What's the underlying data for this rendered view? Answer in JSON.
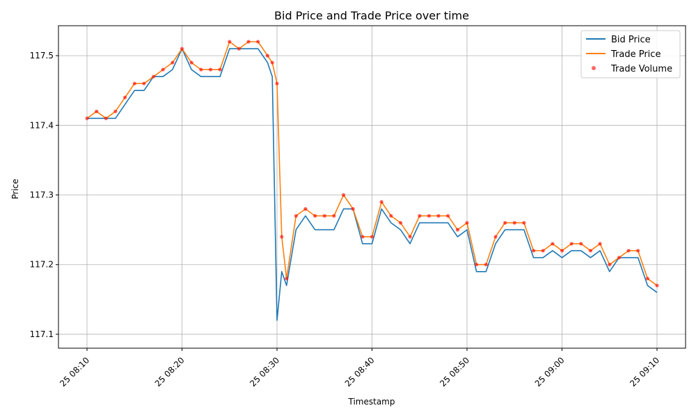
{
  "chart_data": {
    "type": "line",
    "title": "Bid Price and Trade Price over time",
    "xlabel": "Timestamp",
    "ylabel": "Price",
    "ylim": [
      117.08,
      117.543
    ],
    "y_ticks": [
      117.1,
      117.2,
      117.3,
      117.4,
      117.5
    ],
    "y_tick_labels": [
      "117.1",
      "117.2",
      "117.3",
      "117.4",
      "117.5"
    ],
    "x_ticks": [
      "08:10",
      "08:20",
      "08:30",
      "08:40",
      "08:50",
      "09:00",
      "09:10"
    ],
    "x_tick_labels": [
      "25 08:10",
      "25 08:20",
      "25 08:30",
      "25 08:40",
      "25 08:50",
      "25 09:00",
      "25 09:10"
    ],
    "grid": true,
    "legend_position": "top-right",
    "legend": [
      "Bid Price",
      "Trade Price",
      "Trade Volume"
    ],
    "colors": {
      "bid": "#1f77b4",
      "trade": "#ff7f0e",
      "volume": "#ff0000"
    },
    "series": [
      {
        "name": "Bid Price",
        "x": [
          "08:10",
          "08:11",
          "08:12",
          "08:13",
          "08:14",
          "08:15",
          "08:16",
          "08:17",
          "08:18",
          "08:19",
          "08:20",
          "08:21",
          "08:22",
          "08:23",
          "08:24",
          "08:25",
          "08:26",
          "08:27",
          "08:28",
          "08:29",
          "08:29:30",
          "08:30",
          "08:30:30",
          "08:31",
          "08:32",
          "08:33",
          "08:34",
          "08:35",
          "08:36",
          "08:37",
          "08:38",
          "08:39",
          "08:40",
          "08:41",
          "08:42",
          "08:43",
          "08:44",
          "08:45",
          "08:46",
          "08:47",
          "08:48",
          "08:49",
          "08:50",
          "08:51",
          "08:52",
          "08:53",
          "08:54",
          "08:55",
          "08:56",
          "08:57",
          "08:58",
          "08:59",
          "09:00",
          "09:01",
          "09:02",
          "09:03",
          "09:04",
          "09:05",
          "09:06",
          "09:07",
          "09:08",
          "09:09",
          "09:10"
        ],
        "values": [
          117.41,
          117.41,
          117.41,
          117.41,
          117.43,
          117.45,
          117.45,
          117.47,
          117.47,
          117.48,
          117.51,
          117.48,
          117.47,
          117.47,
          117.47,
          117.51,
          117.51,
          117.51,
          117.51,
          117.49,
          117.47,
          117.12,
          117.19,
          117.17,
          117.25,
          117.27,
          117.25,
          117.25,
          117.25,
          117.28,
          117.28,
          117.23,
          117.23,
          117.28,
          117.26,
          117.25,
          117.23,
          117.26,
          117.26,
          117.26,
          117.26,
          117.24,
          117.25,
          117.19,
          117.19,
          117.23,
          117.25,
          117.25,
          117.25,
          117.21,
          117.21,
          117.22,
          117.21,
          117.22,
          117.22,
          117.21,
          117.22,
          117.19,
          117.21,
          117.21,
          117.21,
          117.17,
          117.16
        ]
      },
      {
        "name": "Trade Price",
        "x": [
          "08:10",
          "08:11",
          "08:12",
          "08:13",
          "08:14",
          "08:15",
          "08:16",
          "08:17",
          "08:18",
          "08:19",
          "08:20",
          "08:21",
          "08:22",
          "08:23",
          "08:24",
          "08:25",
          "08:26",
          "08:27",
          "08:28",
          "08:29",
          "08:29:30",
          "08:30",
          "08:30:30",
          "08:31",
          "08:32",
          "08:33",
          "08:34",
          "08:35",
          "08:36",
          "08:37",
          "08:38",
          "08:39",
          "08:40",
          "08:41",
          "08:42",
          "08:43",
          "08:44",
          "08:45",
          "08:46",
          "08:47",
          "08:48",
          "08:49",
          "08:50",
          "08:51",
          "08:52",
          "08:53",
          "08:54",
          "08:55",
          "08:56",
          "08:57",
          "08:58",
          "08:59",
          "09:00",
          "09:01",
          "09:02",
          "09:03",
          "09:04",
          "09:05",
          "09:06",
          "09:07",
          "09:08",
          "09:09",
          "09:10"
        ],
        "values": [
          117.41,
          117.42,
          117.41,
          117.42,
          117.44,
          117.46,
          117.46,
          117.47,
          117.48,
          117.49,
          117.51,
          117.49,
          117.48,
          117.48,
          117.48,
          117.52,
          117.51,
          117.52,
          117.52,
          117.5,
          117.49,
          117.46,
          117.24,
          117.18,
          117.27,
          117.28,
          117.27,
          117.27,
          117.27,
          117.3,
          117.28,
          117.24,
          117.24,
          117.29,
          117.27,
          117.26,
          117.24,
          117.27,
          117.27,
          117.27,
          117.27,
          117.25,
          117.26,
          117.2,
          117.2,
          117.24,
          117.26,
          117.26,
          117.26,
          117.22,
          117.22,
          117.23,
          117.22,
          117.23,
          117.23,
          117.22,
          117.23,
          117.2,
          117.21,
          117.22,
          117.22,
          117.18,
          117.17
        ]
      },
      {
        "name": "Trade Volume",
        "x": [
          "08:10",
          "08:11",
          "08:12",
          "08:13",
          "08:14",
          "08:15",
          "08:16",
          "08:17",
          "08:18",
          "08:19",
          "08:20",
          "08:21",
          "08:22",
          "08:23",
          "08:24",
          "08:25",
          "08:26",
          "08:27",
          "08:28",
          "08:29",
          "08:29:30",
          "08:30",
          "08:30:30",
          "08:31",
          "08:32",
          "08:33",
          "08:34",
          "08:35",
          "08:36",
          "08:37",
          "08:38",
          "08:39",
          "08:40",
          "08:41",
          "08:42",
          "08:43",
          "08:44",
          "08:45",
          "08:46",
          "08:47",
          "08:48",
          "08:49",
          "08:50",
          "08:51",
          "08:52",
          "08:53",
          "08:54",
          "08:55",
          "08:56",
          "08:57",
          "08:58",
          "08:59",
          "09:00",
          "09:01",
          "09:02",
          "09:03",
          "09:04",
          "09:05",
          "09:06",
          "09:07",
          "09:08",
          "09:09",
          "09:10"
        ],
        "values": [
          117.41,
          117.42,
          117.41,
          117.42,
          117.44,
          117.46,
          117.46,
          117.47,
          117.48,
          117.49,
          117.51,
          117.49,
          117.48,
          117.48,
          117.48,
          117.52,
          117.51,
          117.52,
          117.52,
          117.5,
          117.49,
          117.46,
          117.24,
          117.18,
          117.27,
          117.28,
          117.27,
          117.27,
          117.27,
          117.3,
          117.28,
          117.24,
          117.24,
          117.29,
          117.27,
          117.26,
          117.24,
          117.27,
          117.27,
          117.27,
          117.27,
          117.25,
          117.26,
          117.2,
          117.2,
          117.24,
          117.26,
          117.26,
          117.26,
          117.22,
          117.22,
          117.23,
          117.22,
          117.23,
          117.23,
          117.22,
          117.23,
          117.2,
          117.21,
          117.22,
          117.22,
          117.18,
          117.17
        ]
      }
    ]
  }
}
